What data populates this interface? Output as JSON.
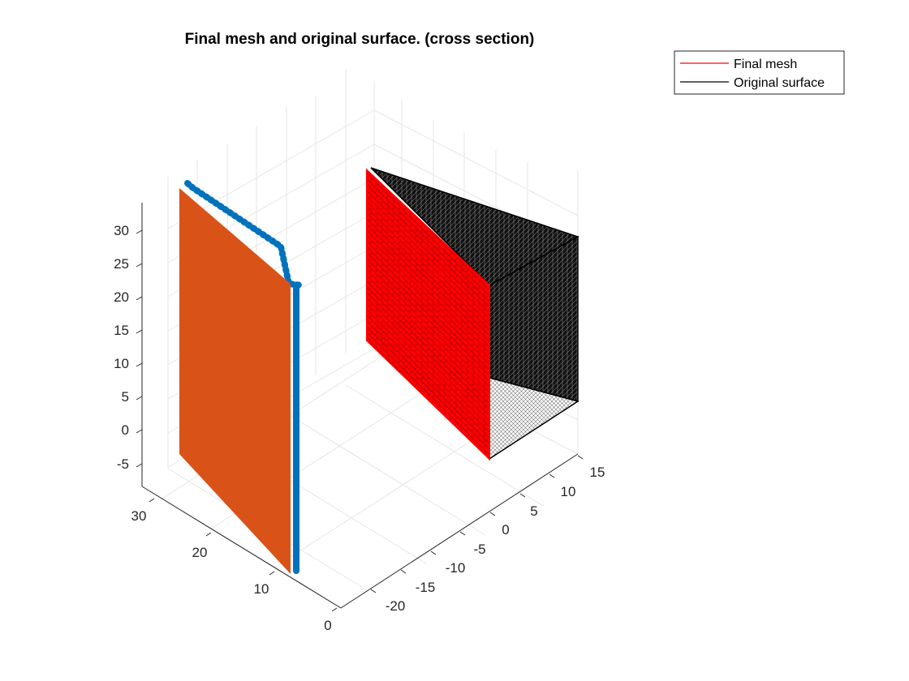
{
  "chart_data": {
    "type": "3d-mesh",
    "title": "Final mesh and original surface. (cross section)",
    "legend": {
      "placement": "top-right-outside",
      "entries": [
        {
          "label": "Final mesh",
          "color": "#ff0000"
        },
        {
          "label": "Original surface",
          "color": "#000000"
        }
      ]
    },
    "grid": true,
    "axes": {
      "z": {
        "ticks": [
          -5,
          0,
          5,
          10,
          15,
          20,
          25,
          30
        ],
        "range": [
          -8,
          34
        ]
      },
      "y": {
        "ticks": [
          0,
          10,
          20,
          30
        ],
        "range": [
          0,
          35
        ]
      },
      "x": {
        "ticks": [
          -20,
          -15,
          -10,
          -5,
          0,
          5,
          10,
          15
        ],
        "range": [
          -23,
          17
        ]
      }
    },
    "series": [
      {
        "color": "#0072bd"
      },
      {
        "color": "#d95319"
      },
      {
        "color": "#ff0000"
      },
      {
        "color": "#000000"
      }
    ]
  }
}
